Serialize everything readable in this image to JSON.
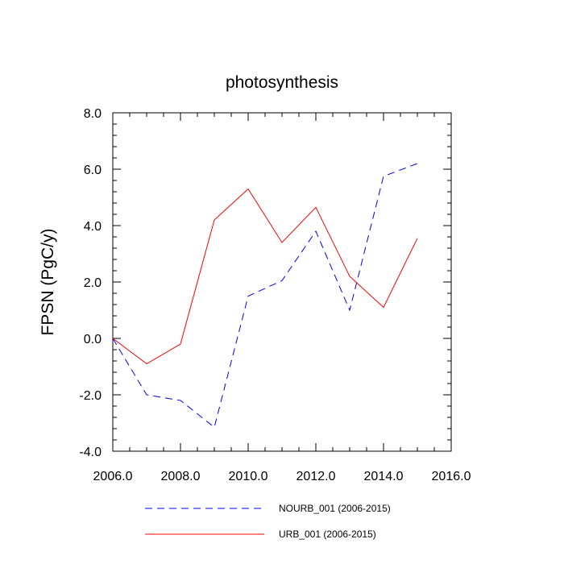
{
  "chart_data": {
    "type": "line",
    "title": "photosynthesis",
    "xlabel": "",
    "ylabel": "FPSN  (PgC/y)",
    "xlim": [
      2006,
      2016
    ],
    "ylim": [
      -4,
      8
    ],
    "x_ticks": [
      2006,
      2008,
      2010,
      2012,
      2014,
      2016
    ],
    "x_tick_labels": [
      "2006.0",
      "2008.0",
      "2010.0",
      "2012.0",
      "2014.0",
      "2016.0"
    ],
    "y_ticks": [
      -4,
      -2,
      0,
      2,
      4,
      6,
      8
    ],
    "y_tick_labels": [
      "-4.0",
      "-2.0",
      "0.0",
      "2.0",
      "4.0",
      "6.0",
      "8.0"
    ],
    "x": [
      2006,
      2007,
      2008,
      2009,
      2010,
      2011,
      2012,
      2013,
      2014,
      2015
    ],
    "series": [
      {
        "name": "NOURB_001 (2006-2015)",
        "color": "#0000ff",
        "style": "dashed",
        "values": [
          0.0,
          -2.0,
          -2.2,
          -3.15,
          1.5,
          2.05,
          3.8,
          1.0,
          5.75,
          6.2
        ]
      },
      {
        "name": "URB_001 (2006-2015)",
        "color": "#ff0000",
        "style": "solid",
        "values": [
          0.0,
          -0.9,
          -0.2,
          4.2,
          5.3,
          3.4,
          4.65,
          2.2,
          1.1,
          3.55
        ]
      }
    ],
    "grid": false,
    "legend_position": "bottom"
  }
}
